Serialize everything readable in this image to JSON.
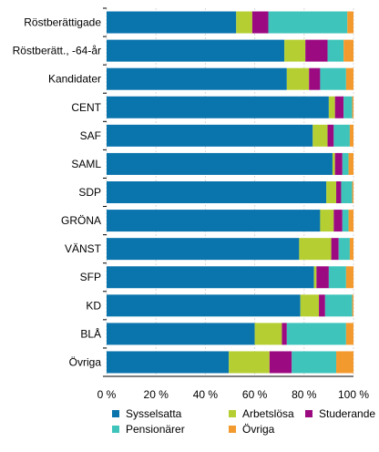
{
  "chart_data": {
    "type": "bar",
    "orientation": "horizontal",
    "stacked": "percent",
    "categories": [
      "Röstberättigade",
      "Röstberätt., -64-år",
      "Kandidater",
      "CENT",
      "SAF",
      "SAML",
      "SDP",
      "GRÖNA",
      "VÄNST",
      "SFP",
      "KD",
      "BLÅ",
      "Övriga"
    ],
    "series": [
      {
        "name": "Sysselsatta",
        "color": "#0a74ad",
        "values": [
          52.5,
          72.0,
          73.0,
          90.0,
          83.5,
          91.5,
          89.0,
          86.5,
          78.0,
          84.0,
          78.5,
          60.0,
          49.5
        ]
      },
      {
        "name": "Arbetslösa",
        "color": "#b5cf32",
        "values": [
          6.5,
          8.5,
          9.0,
          2.5,
          6.0,
          1.0,
          4.0,
          5.5,
          13.0,
          1.0,
          7.5,
          11.0,
          16.5
        ]
      },
      {
        "name": "Studerande",
        "color": "#9c0a82",
        "values": [
          6.5,
          9.0,
          4.5,
          3.5,
          2.5,
          3.0,
          2.0,
          3.5,
          3.0,
          5.0,
          2.5,
          2.0,
          9.0
        ]
      },
      {
        "name": "Pensionärer",
        "color": "#3ec4bb",
        "values": [
          32.0,
          6.5,
          10.5,
          3.5,
          6.5,
          2.5,
          4.5,
          2.5,
          4.5,
          7.0,
          11.0,
          24.0,
          18.0
        ]
      },
      {
        "name": "Övriga",
        "color": "#f39a2f",
        "values": [
          2.5,
          4.0,
          3.0,
          0.5,
          1.5,
          2.0,
          0.5,
          2.0,
          1.5,
          3.0,
          0.5,
          3.0,
          7.0
        ]
      }
    ],
    "xlim": [
      0,
      100
    ],
    "xticks": [
      "0 %",
      "20 %",
      "40 %",
      "60 %",
      "80 %",
      "100 %"
    ],
    "grid": true,
    "legend_position": "bottom"
  }
}
